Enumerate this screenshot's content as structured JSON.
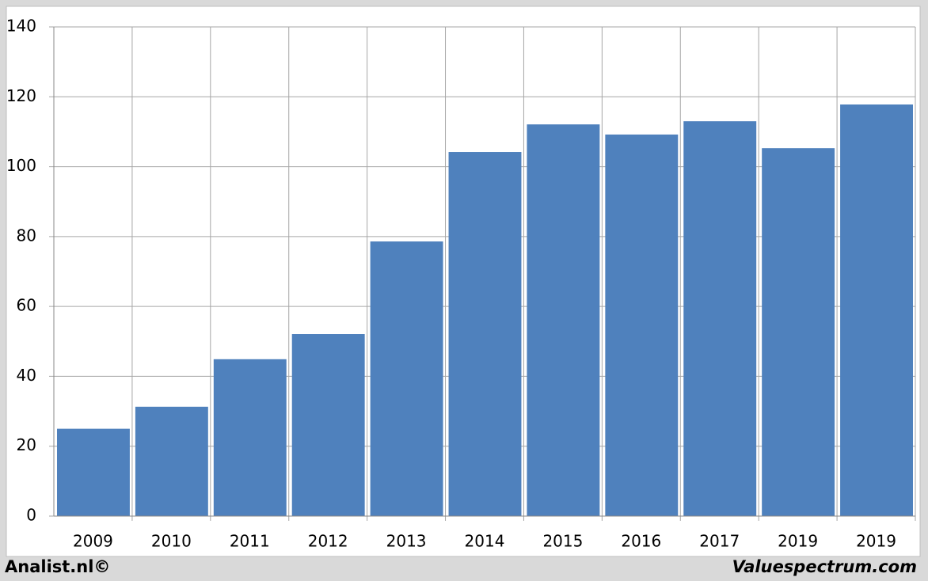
{
  "chart_data": {
    "type": "bar",
    "categories": [
      "2009",
      "2010",
      "2011",
      "2012",
      "2013",
      "2014",
      "2015",
      "2016",
      "2017",
      "2019",
      "2019"
    ],
    "values": [
      25,
      31.3,
      44.9,
      52.1,
      78.6,
      104.2,
      112.1,
      109.2,
      113,
      105.3,
      117.8
    ],
    "color": "#4f81bd",
    "ylim": [
      0,
      140
    ],
    "yticks": [
      0,
      20,
      40,
      60,
      80,
      100,
      120,
      140
    ],
    "grid": true
  },
  "footer": {
    "left": "Analist.nl©",
    "right": "Valuespectrum.com"
  }
}
